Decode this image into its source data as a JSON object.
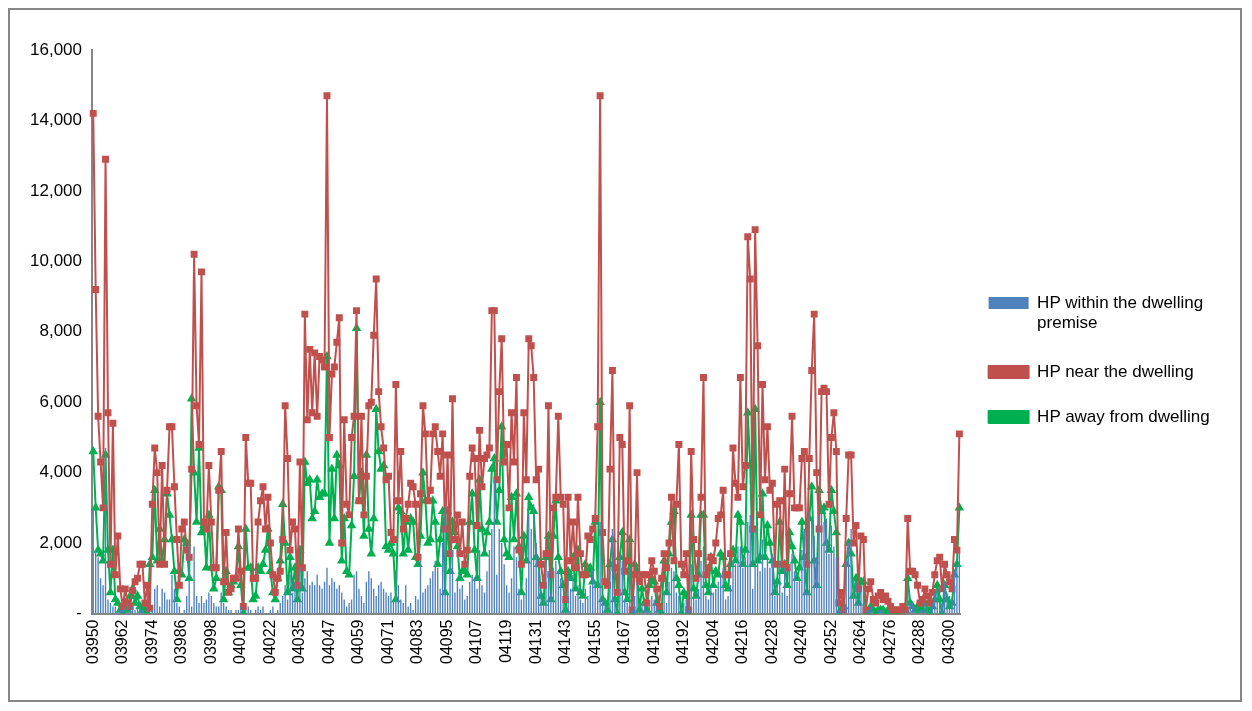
{
  "chart_data": {
    "type": "bar",
    "legend": "right",
    "grid": false,
    "categories": [
      "03950",
      null,
      null,
      null,
      null,
      null,
      null,
      null,
      null,
      null,
      null,
      null,
      "03962",
      null,
      null,
      null,
      null,
      null,
      null,
      null,
      null,
      null,
      null,
      null,
      "03974",
      null,
      null,
      null,
      null,
      null,
      null,
      null,
      null,
      null,
      null,
      null,
      "03986",
      null,
      null,
      null,
      null,
      null,
      null,
      null,
      null,
      null,
      null,
      null,
      "03998",
      null,
      null,
      null,
      null,
      null,
      null,
      null,
      null,
      null,
      null,
      null,
      "04010",
      null,
      null,
      null,
      null,
      null,
      null,
      null,
      null,
      null,
      null,
      null,
      "04022",
      null,
      null,
      null,
      null,
      null,
      null,
      null,
      null,
      null,
      null,
      null,
      "04035",
      null,
      null,
      null,
      null,
      null,
      null,
      null,
      null,
      null,
      null,
      null,
      "04047",
      null,
      null,
      null,
      null,
      null,
      null,
      null,
      null,
      null,
      null,
      null,
      "04059",
      null,
      null,
      null,
      null,
      null,
      null,
      null,
      null,
      null,
      null,
      null,
      "04071",
      null,
      null,
      null,
      null,
      null,
      null,
      null,
      null,
      null,
      null,
      null,
      "04083",
      null,
      null,
      null,
      null,
      null,
      null,
      null,
      null,
      null,
      null,
      null,
      "04095",
      null,
      null,
      null,
      null,
      null,
      null,
      null,
      null,
      null,
      null,
      null,
      "04107",
      null,
      null,
      null,
      null,
      null,
      null,
      null,
      null,
      null,
      null,
      null,
      "04119",
      null,
      null,
      null,
      null,
      null,
      null,
      null,
      null,
      null,
      null,
      null,
      "04131",
      null,
      null,
      null,
      null,
      null,
      null,
      null,
      null,
      null,
      null,
      null,
      "04143",
      null,
      null,
      null,
      null,
      null,
      null,
      null,
      null,
      null,
      null,
      null,
      "04155",
      null,
      null,
      null,
      null,
      null,
      null,
      null,
      null,
      null,
      null,
      null,
      "04167",
      null,
      null,
      null,
      null,
      null,
      null,
      null,
      null,
      null,
      null,
      null,
      "04180",
      null,
      null,
      null,
      null,
      null,
      null,
      null,
      null,
      null,
      null,
      null,
      "04192",
      null,
      null,
      null,
      null,
      null,
      null,
      null,
      null,
      null,
      null,
      null,
      "04204",
      null,
      null,
      null,
      null,
      null,
      null,
      null,
      null,
      null,
      null,
      null,
      "04216",
      null,
      null,
      null,
      null,
      null,
      null,
      null,
      null,
      null,
      null,
      null,
      "04228",
      null,
      null,
      null,
      null,
      null,
      null,
      null,
      null,
      null,
      null,
      null,
      "04240",
      null,
      null,
      null,
      null,
      null,
      null,
      null,
      null,
      null,
      null,
      null,
      "04252",
      null,
      null,
      null,
      null,
      null,
      null,
      null,
      null,
      null,
      null,
      null,
      "04264",
      null,
      null,
      null,
      null,
      null,
      null,
      null,
      null,
      null,
      null,
      null,
      "04276",
      null,
      null,
      null,
      null,
      null,
      null,
      null,
      null,
      null,
      null,
      null,
      "04288",
      null,
      null,
      null,
      null,
      null,
      null,
      null,
      null,
      null,
      null,
      null,
      "04300",
      null,
      null,
      null,
      null
    ],
    "ylim": [
      0,
      16000
    ],
    "yticks": [
      {
        "value": 0,
        "label": "-"
      },
      {
        "value": 2000,
        "label": "2,000"
      },
      {
        "value": 4000,
        "label": "4,000"
      },
      {
        "value": 6000,
        "label": "6,000"
      },
      {
        "value": 8000,
        "label": "8,000"
      },
      {
        "value": 10000,
        "label": "10,000"
      },
      {
        "value": 12000,
        "label": "12,000"
      },
      {
        "value": 14000,
        "label": "14,000"
      },
      {
        "value": 16000,
        "label": "16,000"
      }
    ],
    "series": [
      {
        "name": "HP within the dwelling premise",
        "color": "#4f81bd",
        "values": [
          3000,
          1800,
          1600,
          1000,
          800,
          4700,
          400,
          300,
          200,
          200,
          100,
          100,
          100,
          200,
          300,
          100,
          200,
          100,
          300,
          200,
          100,
          0,
          100,
          0,
          100,
          700,
          800,
          200,
          700,
          600,
          400,
          400,
          1100,
          700,
          300,
          200,
          0,
          100,
          500,
          2000,
          200,
          1900,
          500,
          300,
          500,
          300,
          400,
          600,
          500,
          300,
          200,
          200,
          600,
          300,
          200,
          100,
          100,
          0,
          100,
          100,
          200,
          100,
          100,
          200,
          100,
          0,
          100,
          200,
          100,
          200,
          0,
          0,
          100,
          200,
          0,
          100,
          300,
          500,
          800,
          400,
          1100,
          600,
          900,
          800,
          1300,
          600,
          1000,
          1200,
          800,
          900,
          800,
          1100,
          800,
          700,
          900,
          1300,
          800,
          1000,
          900,
          700,
          800,
          600,
          400,
          200,
          300,
          400,
          1100,
          1200,
          700,
          500,
          300,
          900,
          1200,
          1000,
          700,
          500,
          800,
          900,
          700,
          600,
          500,
          600,
          400,
          1200,
          800,
          400,
          300,
          800,
          200,
          300,
          100,
          500,
          400,
          1500,
          600,
          700,
          800,
          1000,
          1200,
          1500,
          1300,
          700,
          2000,
          3000,
          600,
          1400,
          1800,
          600,
          1000,
          700,
          800,
          400,
          500,
          900,
          1100,
          1000,
          700,
          1800,
          800,
          600,
          1200,
          1800,
          2400,
          3800,
          1100,
          2400,
          2000,
          1400,
          800,
          600,
          1000,
          1900,
          1600,
          700,
          400,
          600,
          1000,
          2800,
          2400,
          3100,
          2000,
          1200,
          600,
          400,
          1500,
          1200,
          600,
          1300,
          1500,
          1200,
          1000,
          300,
          200,
          1000,
          700,
          1100,
          500,
          800,
          400,
          300,
          700,
          500,
          800,
          1200,
          900,
          1600,
          2600,
          400,
          300,
          200,
          1200,
          2400,
          400,
          200,
          1700,
          1500,
          400,
          300,
          1300,
          100,
          500,
          900,
          300,
          300,
          200,
          100,
          300,
          500,
          400,
          200,
          100,
          100,
          600,
          300,
          900,
          1300,
          1200,
          600,
          500,
          100,
          300,
          400,
          100,
          1400,
          600,
          400,
          700,
          1500,
          1900,
          500,
          400,
          800,
          600,
          700,
          900,
          1100,
          1300,
          400,
          500,
          800,
          1500,
          1400,
          1900,
          1900,
          1300,
          1600,
          2600,
          2800,
          700,
          2400,
          2100,
          1200,
          2100,
          1300,
          1600,
          1300,
          1700,
          500,
          1000,
          1500,
          600,
          1300,
          500,
          1400,
          1700,
          1200,
          900,
          1000,
          1800,
          2400,
          600,
          2900,
          2700,
          2200,
          1600,
          2800,
          3000,
          2600,
          2700,
          1700,
          2500,
          1900,
          1600,
          100,
          200,
          200,
          1500,
          2000,
          2400,
          1000,
          900,
          300,
          700,
          800,
          100,
          100,
          200,
          100,
          0,
          100,
          100,
          100,
          0,
          100,
          0,
          0,
          0,
          0,
          0,
          0,
          100,
          800,
          300,
          300,
          200,
          200,
          100,
          100,
          300,
          200,
          100,
          300,
          600,
          700,
          800,
          300,
          900,
          600,
          500,
          400,
          1200,
          1400,
          1800
        ]
      },
      {
        "name": "HP near the dwelling",
        "type": "line",
        "color": "#c0504d",
        "marker": "square",
        "values": [
          14200,
          9200,
          5600,
          4300,
          3000,
          12900,
          5700,
          1400,
          5400,
          1100,
          2200,
          700,
          200,
          700,
          300,
          200,
          650,
          900,
          1000,
          1400,
          1400,
          300,
          800,
          150,
          3100,
          4700,
          4000,
          1400,
          4200,
          1400,
          3500,
          5300,
          5300,
          3600,
          2100,
          800,
          2400,
          2600,
          1800,
          1600,
          4100,
          10200,
          5900,
          4800,
          9700,
          2600,
          2400,
          4200,
          2600,
          1300,
          1300,
          3500,
          4600,
          900,
          2300,
          600,
          700,
          1000,
          1000,
          2400,
          1200,
          200,
          5000,
          3700,
          3700,
          1000,
          1000,
          2600,
          3200,
          3600,
          2400,
          3300,
          2000,
          1100,
          600,
          1000,
          1200,
          2100,
          5900,
          4400,
          1800,
          2600,
          2400,
          800,
          4300,
          1300,
          8500,
          5500,
          7500,
          5700,
          7400,
          5600,
          7300,
          7200,
          7000,
          14700,
          5000,
          6800,
          7000,
          7700,
          8400,
          2000,
          5500,
          3100,
          2800,
          5000,
          5600,
          8600,
          3200,
          5600,
          2800,
          3900,
          5900,
          6000,
          7900,
          9500,
          6300,
          5300,
          4700,
          3800,
          3900,
          2300,
          2100,
          6500,
          3200,
          4600,
          2400,
          2700,
          3100,
          3700,
          3600,
          3100,
          1600,
          3400,
          5900,
          5100,
          3200,
          3500,
          5100,
          5300,
          4600,
          3900,
          5100,
          2400,
          4500,
          1700,
          6100,
          2100,
          2800,
          1700,
          2600,
          1400,
          1800,
          3900,
          4700,
          4400,
          2500,
          5200,
          3600,
          4400,
          4500,
          4700,
          8600,
          8600,
          3800,
          6300,
          7800,
          4300,
          4800,
          3000,
          5700,
          4300,
          6700,
          1800,
          1400,
          5700,
          3800,
          7800,
          7600,
          6700,
          3800,
          4100,
          1400,
          800,
          1700,
          5900,
          1100,
          3000,
          3300,
          5600,
          3300,
          3100,
          400,
          3300,
          1500,
          2600,
          1300,
          3300,
          1700,
          1100,
          1100,
          2200,
          2100,
          2400,
          2700,
          5300,
          14700,
          2300,
          900,
          800,
          4100,
          6900,
          1300,
          600,
          5000,
          4800,
          1200,
          1500,
          5900,
          100,
          1100,
          4000,
          900,
          1100,
          1100,
          300,
          1100,
          1500,
          1200,
          700,
          200,
          1000,
          1700,
          1300,
          2000,
          3300,
          1500,
          3100,
          4800,
          1400,
          1100,
          1700,
          100,
          4600,
          2100,
          1000,
          1700,
          3300,
          6700,
          1100,
          1300,
          1600,
          1500,
          2000,
          2700,
          2800,
          3500,
          1100,
          1100,
          1700,
          4700,
          3700,
          3300,
          6700,
          3600,
          4200,
          10700,
          9500,
          2400,
          10900,
          7600,
          2800,
          6500,
          3800,
          5300,
          3500,
          3700,
          1400,
          3100,
          3200,
          1400,
          4100,
          1300,
          3400,
          5600,
          3000,
          3000,
          3000,
          4400,
          4600,
          1400,
          4400,
          6900,
          8500,
          4000,
          2400,
          6300,
          6400,
          6300,
          3100,
          5000,
          5700,
          4600,
          300,
          600,
          100,
          2700,
          4500,
          4500,
          2000,
          2500,
          700,
          2200,
          2100,
          100,
          700,
          900,
          400,
          300,
          500,
          600,
          400,
          500,
          350,
          200,
          100,
          100,
          100,
          100,
          200,
          100,
          2700,
          1200,
          1200,
          1100,
          800,
          300,
          400,
          700,
          500,
          300,
          600,
          1100,
          1500,
          1600,
          700,
          1400,
          1100,
          900,
          700,
          2100,
          1800,
          5100
        ]
      },
      {
        "name": "HP away from dwelling",
        "type": "line",
        "color": "#00b050",
        "marker": "triangle",
        "values": [
          4600,
          3000,
          1800,
          1700,
          1500,
          4500,
          1800,
          600,
          1800,
          400,
          300,
          100,
          0,
          300,
          100,
          500,
          700,
          300,
          500,
          200,
          100,
          100,
          0,
          1400,
          1600,
          3500,
          1500,
          2400,
          1500,
          2100,
          3400,
          2800,
          2100,
          1200,
          400,
          1200,
          1100,
          2100,
          2000,
          1000,
          6100,
          4000,
          2600,
          4700,
          2300,
          2500,
          1300,
          2800,
          1300,
          700,
          1000,
          3600,
          3500,
          400,
          1200,
          600,
          800,
          900,
          1000,
          1900,
          800,
          0,
          2400,
          1300,
          1300,
          400,
          500,
          1300,
          1200,
          1400,
          1800,
          2400,
          1200,
          600,
          400,
          1000,
          1500,
          3100,
          2000,
          600,
          1600,
          700,
          1300,
          400,
          1800,
          700,
          4300,
          3700,
          3800,
          2700,
          2900,
          3800,
          3300,
          3400,
          3400,
          7300,
          2000,
          4100,
          2700,
          4500,
          4200,
          1500,
          2700,
          1200,
          1100,
          2500,
          3900,
          8100,
          3200,
          4000,
          2200,
          4500,
          2400,
          1700,
          2700,
          5800,
          4600,
          4100,
          4200,
          1900,
          1800,
          2000,
          1700,
          400,
          3000,
          2900,
          1700,
          2600,
          1800,
          2700,
          2600,
          1600,
          1400,
          2200,
          4000,
          3200,
          2000,
          2100,
          3200,
          2600,
          1400,
          2100,
          2900,
          600,
          2900,
          1200,
          2600,
          2300,
          1900,
          1000,
          1200,
          1200,
          1100,
          2600,
          3400,
          1800,
          1000,
          3800,
          2400,
          1700,
          2300,
          2600,
          4100,
          4400,
          2600,
          3500,
          5300,
          2100,
          1700,
          1600,
          3300,
          2100,
          3400,
          1900,
          600,
          2200,
          1500,
          3300,
          3000,
          2900,
          1600,
          1400,
          500,
          300,
          1600,
          2200,
          400,
          2200,
          3200,
          1600,
          1200,
          800,
          100,
          1200,
          1000,
          1600,
          700,
          1800,
          600,
          500,
          1400,
          1100,
          1300,
          900,
          2600,
          800,
          6000,
          400,
          300,
          100,
          1400,
          2100,
          400,
          0,
          1600,
          2300,
          600,
          400,
          2100,
          0,
          1400,
          1200,
          100,
          700,
          300,
          100,
          800,
          1000,
          900,
          300,
          100,
          0,
          1500,
          600,
          1700,
          2600,
          2900,
          1000,
          800,
          0,
          600,
          500,
          0,
          2800,
          700,
          500,
          1100,
          2800,
          2800,
          800,
          600,
          1600,
          800,
          1200,
          1100,
          1700,
          1600,
          800,
          700,
          1400,
          1800,
          1500,
          2800,
          2600,
          1400,
          1800,
          5700,
          4200,
          1400,
          5800,
          1500,
          1600,
          3400,
          1600,
          2500,
          2000,
          1500,
          600,
          900,
          2600,
          1200,
          1400,
          800,
          2300,
          1900,
          1500,
          1000,
          1300,
          2600,
          1600,
          600,
          2700,
          3600,
          1500,
          800,
          3500,
          2900,
          3000,
          2000,
          1800,
          3500,
          2900,
          2300,
          0,
          100,
          200,
          1400,
          2000,
          1700,
          500,
          1000,
          300,
          900,
          900,
          0,
          0,
          200,
          100,
          0,
          100,
          100,
          100,
          0,
          100,
          0,
          0,
          0,
          0,
          0,
          100,
          100,
          1000,
          300,
          200,
          100,
          200,
          100,
          100,
          300,
          100,
          0,
          200,
          400,
          800,
          400,
          0,
          800,
          400,
          200,
          300,
          1100,
          1400,
          3000
        ]
      }
    ]
  }
}
